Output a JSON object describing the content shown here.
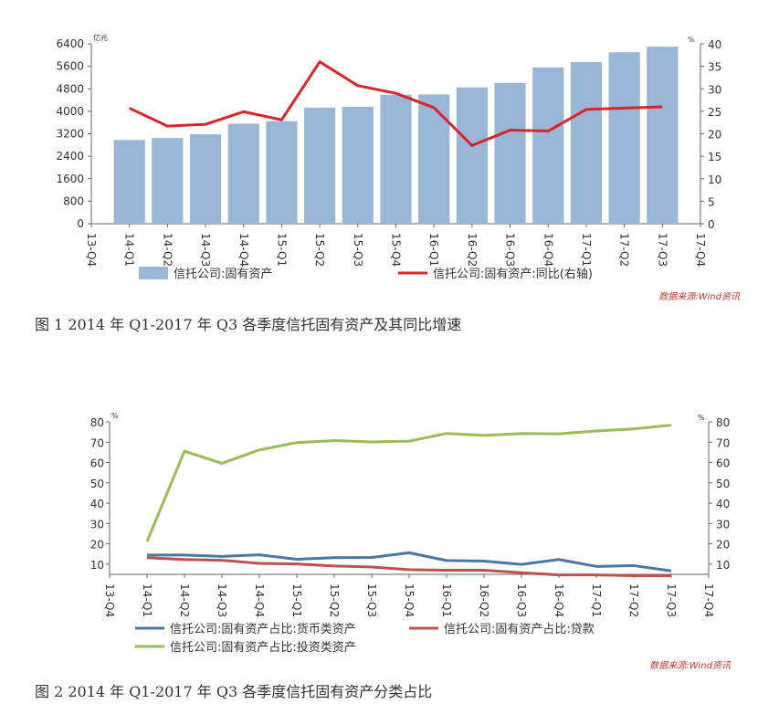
{
  "chart_data": [
    {
      "type": "bar+line",
      "categories": [
        "13-Q4",
        "14-Q1",
        "14-Q2",
        "14-Q3",
        "14-Q4",
        "15-Q1",
        "15-Q2",
        "15-Q3",
        "15-Q4",
        "16-Q1",
        "16-Q2",
        "16-Q3",
        "16-Q4",
        "17-Q1",
        "17-Q2",
        "17-Q3",
        "17-Q4"
      ],
      "left_unit": "亿元",
      "right_unit": "%",
      "left_ticks": [
        "0",
        "800",
        "1600",
        "2400",
        "3200",
        "4000",
        "4800",
        "5600",
        "6400"
      ],
      "right_ticks": [
        "0",
        "5",
        "10",
        "15",
        "20",
        "25",
        "30",
        "35",
        "40"
      ],
      "ylim_left": [
        0,
        6400
      ],
      "ylim_right": [
        0,
        40
      ],
      "series": [
        {
          "name": "信托公司:固有资产",
          "kind": "bar",
          "axis": "left",
          "color": "#9ab6d6",
          "values": [
            null,
            2980,
            3050,
            3180,
            3560,
            3650,
            4130,
            4160,
            4590,
            4600,
            4850,
            5010,
            5560,
            5750,
            6100,
            6300,
            null
          ]
        },
        {
          "name": "信托公司:固有资产:同比(右轴)",
          "kind": "line",
          "axis": "right",
          "color": "#d9262c",
          "values": [
            null,
            25.7,
            21.7,
            22.1,
            24.9,
            23.1,
            36.0,
            30.7,
            29.0,
            25.8,
            17.4,
            20.8,
            20.6,
            25.4,
            25.7,
            26.0,
            null
          ]
        }
      ],
      "source": "数据来源:Wind资讯",
      "caption": "图 1    2014 年 Q1-2017 年 Q3 各季度信托固有资产及其同比增速"
    },
    {
      "type": "line",
      "categories": [
        "13-Q4",
        "14-Q1",
        "14-Q2",
        "14-Q3",
        "14-Q4",
        "15-Q1",
        "15-Q2",
        "15-Q3",
        "15-Q4",
        "16-Q1",
        "16-Q2",
        "16-Q3",
        "16-Q4",
        "17-Q1",
        "17-Q2",
        "17-Q3",
        "17-Q4"
      ],
      "left_unit": "%",
      "right_unit": "%",
      "left_ticks": [
        "10",
        "20",
        "30",
        "40",
        "50",
        "60",
        "70",
        "80"
      ],
      "right_ticks": [
        "10",
        "20",
        "30",
        "40",
        "50",
        "60",
        "70",
        "80"
      ],
      "ylim": [
        5,
        80
      ],
      "series": [
        {
          "name": "信托公司:固有资产占比:货币类资产",
          "color": "#4a76a8",
          "values": [
            null,
            14.5,
            14.5,
            13.8,
            14.6,
            12.4,
            13.2,
            13.3,
            15.6,
            11.8,
            11.5,
            9.9,
            12.3,
            8.9,
            9.3,
            6.7,
            null
          ]
        },
        {
          "name": "信托公司:固有资产占比:贷款",
          "color": "#c0504d",
          "values": [
            null,
            13.2,
            12.3,
            11.9,
            10.4,
            10.1,
            9.1,
            8.6,
            7.3,
            7.0,
            7.0,
            5.8,
            4.7,
            4.7,
            4.3,
            4.3,
            null
          ]
        },
        {
          "name": "信托公司:固有资产占比:投资类资产",
          "color": "#9bbb59",
          "values": [
            null,
            21.2,
            65.6,
            59.6,
            66.2,
            69.8,
            70.8,
            70.1,
            70.5,
            74.3,
            73.3,
            74.3,
            74.1,
            75.5,
            76.5,
            78.4,
            null
          ]
        }
      ],
      "source": "数据来源:Wind资讯",
      "caption": "图 2    2014 年 Q1-2017 年 Q3 各季度信托固有资产分类占比"
    }
  ]
}
